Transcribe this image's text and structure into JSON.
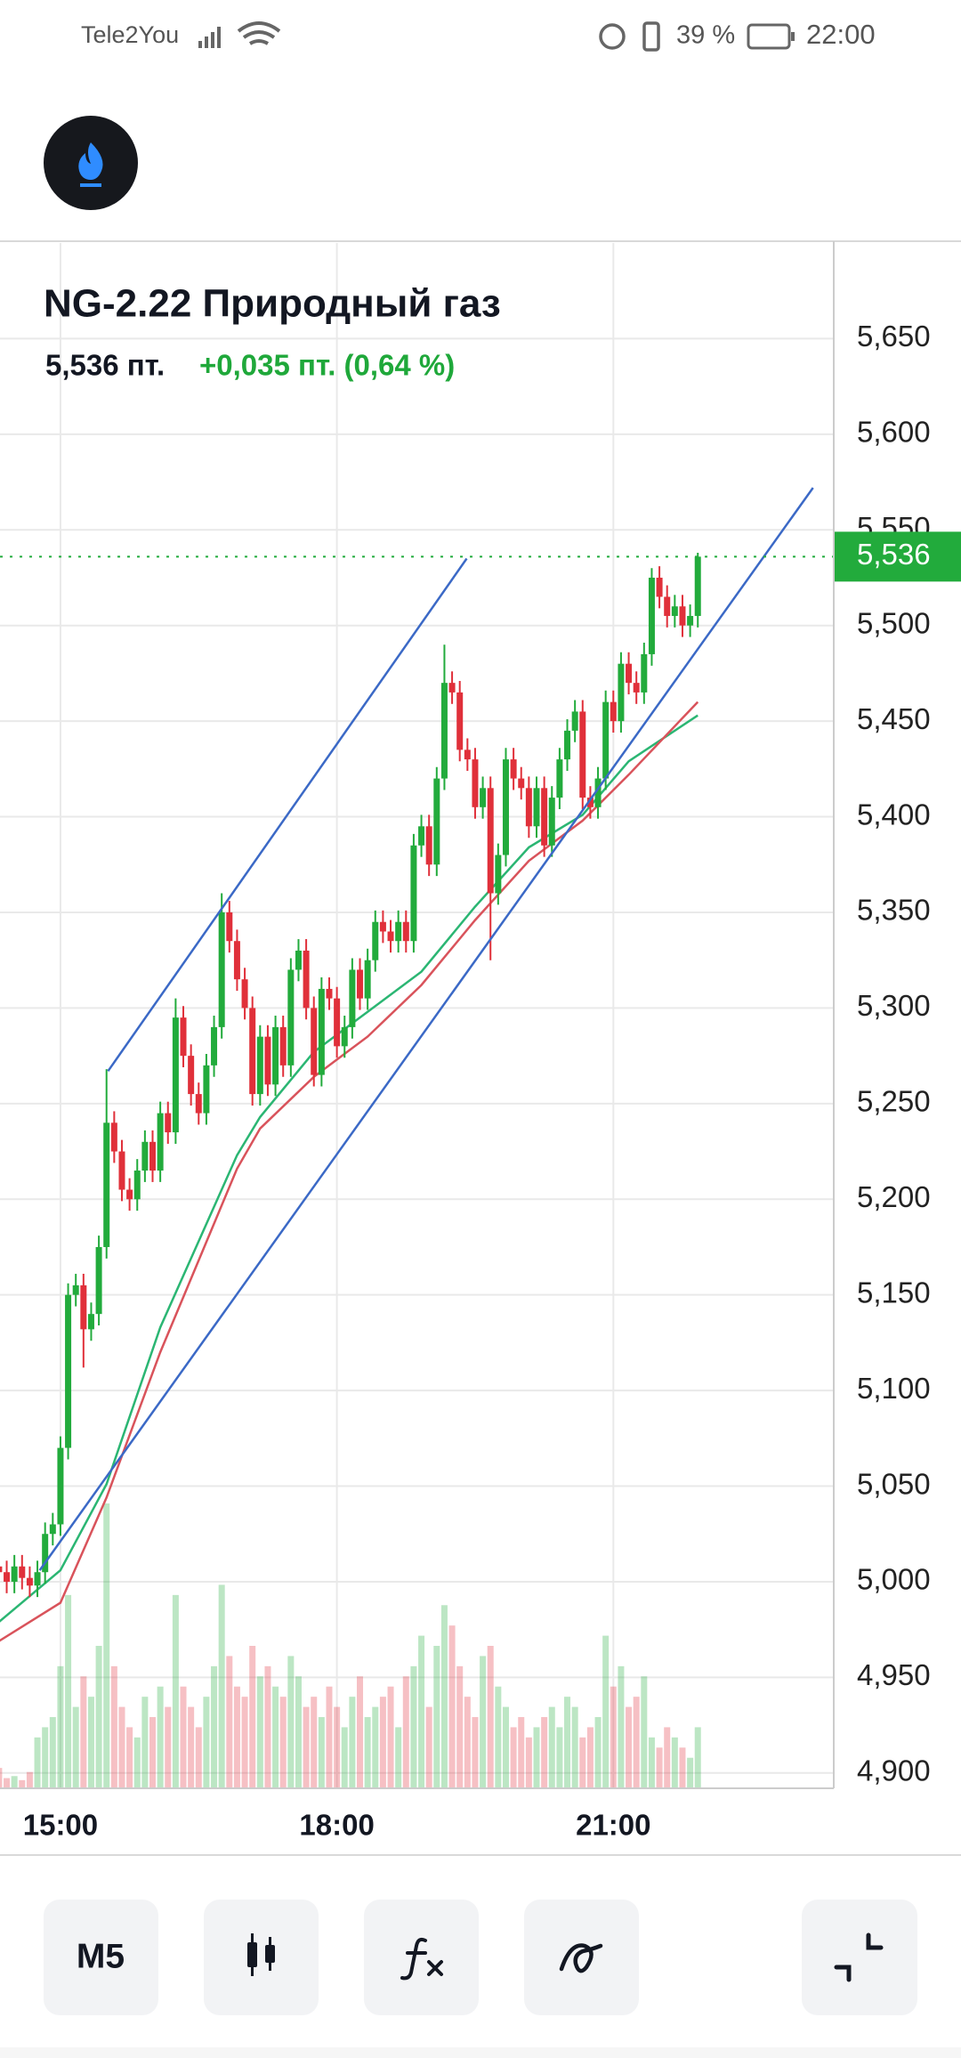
{
  "status_bar": {
    "carrier": "Tele2You",
    "battery": "39 %",
    "time": "22:00"
  },
  "toolbar": {
    "timeframe": "M5"
  },
  "chart_data": {
    "type": "candlestick",
    "title": "NG-2.22 Природный газ",
    "subtitle": "5,536 пт.",
    "change": "+0,035 пт. (0,64 %)",
    "categories": [
      null,
      null,
      null,
      null,
      null,
      null,
      null,
      null,
      "15:00",
      null,
      null,
      null,
      null,
      null,
      null,
      null,
      null,
      null,
      null,
      null,
      null,
      null,
      null,
      null,
      null,
      null,
      null,
      null,
      null,
      null,
      null,
      null,
      null,
      null,
      null,
      null,
      null,
      null,
      null,
      null,
      null,
      null,
      null,
      null,
      "18:00",
      null,
      null,
      null,
      null,
      null,
      null,
      null,
      null,
      null,
      null,
      null,
      null,
      null,
      null,
      null,
      null,
      null,
      null,
      null,
      null,
      null,
      null,
      null,
      null,
      null,
      null,
      null,
      null,
      null,
      null,
      null,
      null,
      null,
      null,
      null,
      "21:00",
      null,
      null,
      null,
      null,
      null,
      null,
      null,
      null,
      null,
      null,
      null
    ],
    "open": [
      5.008,
      5.005,
      5.0,
      5.008,
      5.002,
      4.998,
      5.005,
      5.025,
      5.03,
      5.07,
      5.15,
      5.155,
      5.132,
      5.14,
      5.175,
      5.24,
      5.225,
      5.205,
      5.2,
      5.215,
      5.23,
      5.215,
      5.245,
      5.235,
      5.295,
      5.275,
      5.255,
      5.245,
      5.27,
      5.29,
      5.35,
      5.335,
      5.315,
      5.3,
      5.255,
      5.285,
      5.26,
      5.29,
      5.27,
      5.32,
      5.33,
      5.3,
      5.265,
      5.31,
      5.305,
      5.28,
      5.29,
      5.32,
      5.305,
      5.325,
      5.345,
      5.34,
      5.335,
      5.345,
      5.335,
      5.385,
      5.395,
      5.375,
      5.42,
      5.47,
      5.465,
      5.435,
      5.43,
      5.405,
      5.415,
      5.36,
      5.38,
      5.43,
      5.42,
      5.415,
      5.395,
      5.415,
      5.385,
      5.41,
      5.43,
      5.445,
      5.455,
      5.41,
      5.405,
      5.42,
      5.46,
      5.45,
      5.48,
      5.47,
      5.465,
      5.485,
      5.525,
      5.515,
      5.505,
      5.51,
      5.5,
      5.505
    ],
    "high": [
      5.014,
      5.011,
      5.014,
      5.014,
      5.008,
      5.011,
      5.031,
      5.036,
      5.076,
      5.156,
      5.161,
      5.161,
      5.146,
      5.181,
      5.268,
      5.246,
      5.231,
      5.211,
      5.221,
      5.236,
      5.236,
      5.251,
      5.251,
      5.305,
      5.301,
      5.281,
      5.261,
      5.276,
      5.296,
      5.36,
      5.356,
      5.341,
      5.321,
      5.306,
      5.291,
      5.291,
      5.296,
      5.296,
      5.326,
      5.336,
      5.336,
      5.306,
      5.316,
      5.316,
      5.311,
      5.296,
      5.326,
      5.326,
      5.331,
      5.351,
      5.351,
      5.346,
      5.351,
      5.351,
      5.391,
      5.401,
      5.401,
      5.426,
      5.49,
      5.476,
      5.471,
      5.441,
      5.436,
      5.421,
      5.421,
      5.386,
      5.436,
      5.436,
      5.426,
      5.421,
      5.421,
      5.421,
      5.416,
      5.436,
      5.451,
      5.461,
      5.461,
      5.416,
      5.426,
      5.466,
      5.466,
      5.486,
      5.486,
      5.476,
      5.491,
      5.53,
      5.531,
      5.521,
      5.516,
      5.516,
      5.511,
      5.538
    ],
    "low": [
      4.999,
      4.994,
      4.994,
      4.996,
      4.992,
      4.992,
      4.999,
      5.019,
      5.024,
      5.064,
      5.144,
      5.112,
      5.126,
      5.134,
      5.169,
      5.219,
      5.199,
      5.194,
      5.194,
      5.209,
      5.209,
      5.209,
      5.229,
      5.229,
      5.269,
      5.249,
      5.239,
      5.239,
      5.264,
      5.284,
      5.329,
      5.309,
      5.294,
      5.249,
      5.249,
      5.254,
      5.254,
      5.264,
      5.264,
      5.314,
      5.294,
      5.259,
      5.259,
      5.299,
      5.274,
      5.274,
      5.284,
      5.299,
      5.299,
      5.319,
      5.334,
      5.329,
      5.329,
      5.329,
      5.329,
      5.379,
      5.369,
      5.369,
      5.414,
      5.459,
      5.429,
      5.424,
      5.399,
      5.399,
      5.325,
      5.354,
      5.374,
      5.414,
      5.409,
      5.389,
      5.389,
      5.379,
      5.379,
      5.404,
      5.424,
      5.439,
      5.404,
      5.399,
      5.399,
      5.414,
      5.444,
      5.444,
      5.464,
      5.459,
      5.459,
      5.479,
      5.509,
      5.499,
      5.499,
      5.494,
      5.494,
      5.499
    ],
    "close": [
      5.005,
      5.0,
      5.008,
      5.002,
      4.998,
      5.005,
      5.025,
      5.03,
      5.07,
      5.15,
      5.155,
      5.132,
      5.14,
      5.175,
      5.24,
      5.225,
      5.205,
      5.2,
      5.215,
      5.23,
      5.215,
      5.245,
      5.235,
      5.295,
      5.275,
      5.255,
      5.245,
      5.27,
      5.29,
      5.35,
      5.335,
      5.315,
      5.3,
      5.255,
      5.285,
      5.26,
      5.29,
      5.27,
      5.32,
      5.33,
      5.3,
      5.265,
      5.31,
      5.305,
      5.28,
      5.29,
      5.32,
      5.305,
      5.325,
      5.345,
      5.34,
      5.335,
      5.345,
      5.335,
      5.385,
      5.395,
      5.375,
      5.42,
      5.47,
      5.465,
      5.435,
      5.43,
      5.405,
      5.415,
      5.36,
      5.38,
      5.43,
      5.42,
      5.415,
      5.395,
      5.415,
      5.385,
      5.41,
      5.43,
      5.445,
      5.455,
      5.41,
      5.405,
      5.42,
      5.46,
      5.45,
      5.48,
      5.47,
      5.465,
      5.485,
      5.525,
      5.515,
      5.505,
      5.51,
      5.5,
      5.505,
      5.536
    ],
    "volume": [
      10,
      5,
      6,
      4,
      8,
      25,
      30,
      35,
      60,
      95,
      40,
      55,
      45,
      70,
      140,
      60,
      40,
      30,
      25,
      45,
      35,
      50,
      40,
      95,
      50,
      40,
      30,
      45,
      60,
      100,
      65,
      50,
      45,
      70,
      55,
      60,
      50,
      45,
      65,
      55,
      40,
      45,
      35,
      50,
      40,
      30,
      45,
      55,
      35,
      40,
      45,
      50,
      30,
      55,
      60,
      75,
      40,
      70,
      90,
      80,
      60,
      45,
      35,
      65,
      70,
      50,
      40,
      30,
      35,
      25,
      30,
      35,
      40,
      30,
      45,
      40,
      25,
      30,
      35,
      75,
      50,
      60,
      40,
      45,
      55,
      25,
      20,
      30,
      25,
      20,
      15,
      30
    ],
    "up_color": "#22ab3c",
    "down_color": "#e0303a",
    "ylim": [
      4.892,
      5.7
    ],
    "yticks": [
      {
        "value": 4.9,
        "label": "4,900"
      },
      {
        "value": 4.95,
        "label": "4,950"
      },
      {
        "value": 5.0,
        "label": "5,000"
      },
      {
        "value": 5.05,
        "label": "5,050"
      },
      {
        "value": 5.1,
        "label": "5,100"
      },
      {
        "value": 5.15,
        "label": "5,150"
      },
      {
        "value": 5.2,
        "label": "5,200"
      },
      {
        "value": 5.25,
        "label": "5,250"
      },
      {
        "value": 5.3,
        "label": "5,300"
      },
      {
        "value": 5.35,
        "label": "5,350"
      },
      {
        "value": 5.4,
        "label": "5,400"
      },
      {
        "value": 5.45,
        "label": "5,450"
      },
      {
        "value": 5.5,
        "label": "5,500"
      },
      {
        "value": 5.55,
        "label": "5,550"
      },
      {
        "value": 5.6,
        "label": "5,600"
      },
      {
        "value": 5.65,
        "label": "5,650"
      }
    ],
    "current_price": {
      "value": 5.536,
      "label": "5,536"
    },
    "moving_averages": [
      {
        "color": "#2bb673",
        "x": [
          0,
          8,
          14,
          21,
          31,
          34,
          41,
          48,
          55,
          62,
          69,
          76,
          82,
          91
        ],
        "values": [
          4.979,
          5.006,
          5.051,
          5.133,
          5.223,
          5.243,
          5.277,
          5.298,
          5.319,
          5.353,
          5.384,
          5.401,
          5.429,
          5.453
        ]
      },
      {
        "color": "#d9535b",
        "x": [
          0,
          8,
          14,
          21,
          31,
          34,
          41,
          48,
          55,
          62,
          69,
          76,
          82,
          91
        ],
        "values": [
          4.969,
          4.989,
          5.044,
          5.12,
          5.216,
          5.237,
          5.264,
          5.285,
          5.312,
          5.346,
          5.377,
          5.398,
          5.422,
          5.46
        ]
      }
    ],
    "trend_lines": [
      {
        "color": "#3b69c6",
        "x": [
          14.2,
          60.9
        ],
        "values": [
          5.267,
          5.535
        ]
      },
      {
        "color": "#3b69c6",
        "x": [
          5.3,
          106
        ],
        "values": [
          5.006,
          5.572
        ]
      }
    ],
    "grid": true
  }
}
